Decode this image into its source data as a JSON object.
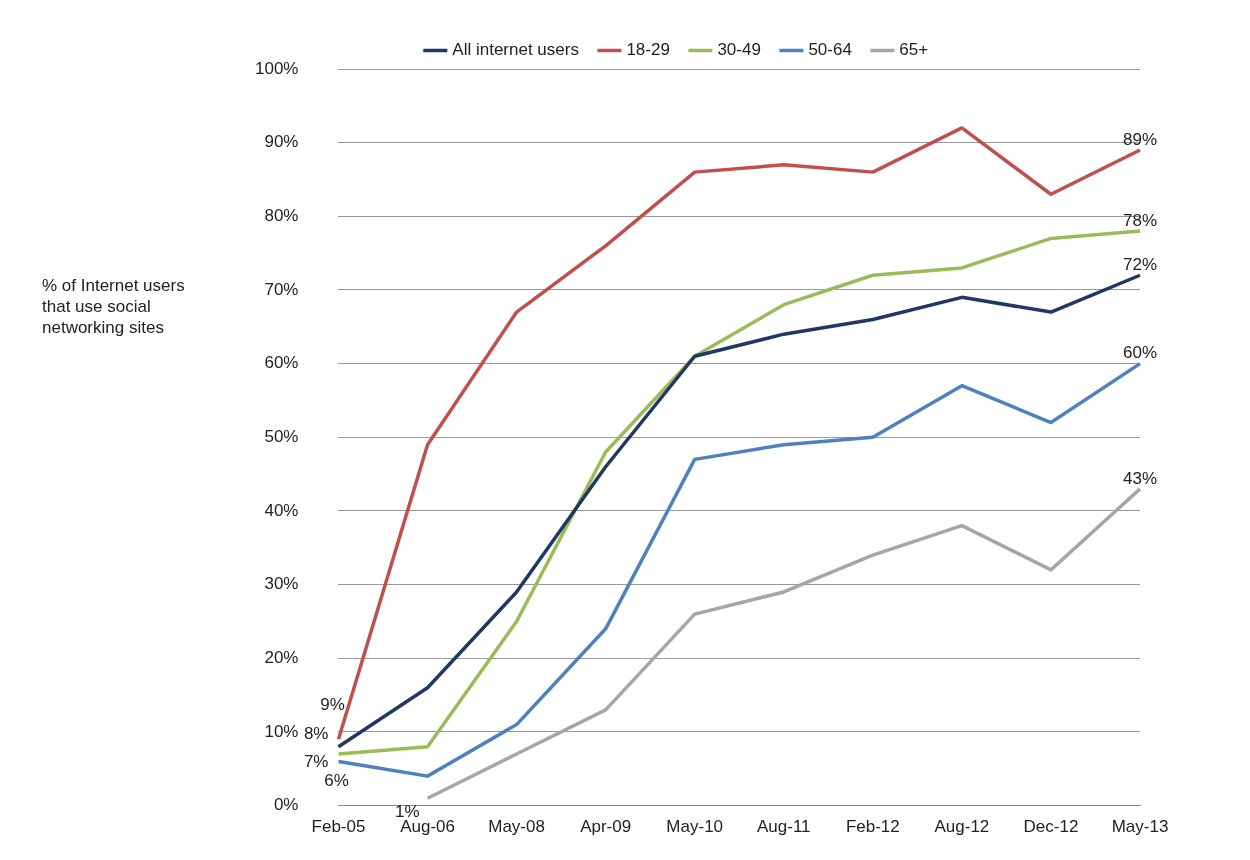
{
  "chart_data": {
    "type": "line",
    "ylabel": "% of Internet users that use social networking sites",
    "categories": [
      "Feb-05",
      "Aug-06",
      "May-08",
      "Apr-09",
      "May-10",
      "Aug-11",
      "Feb-12",
      "Aug-12",
      "Dec-12",
      "May-13"
    ],
    "series": [
      {
        "name": "All internet users",
        "color": "#1f3864",
        "values": [
          8,
          16,
          29,
          46,
          61,
          64,
          66,
          69,
          67,
          72
        ],
        "value_labels": [
          "8%",
          null,
          null,
          null,
          null,
          null,
          null,
          null,
          null,
          "72%"
        ]
      },
      {
        "name": "18-29",
        "color": "#c0504d",
        "values": [
          9,
          49,
          67,
          76,
          86,
          87,
          86,
          92,
          83,
          89
        ],
        "value_labels": [
          "9%",
          null,
          null,
          null,
          null,
          null,
          null,
          null,
          null,
          "89%"
        ]
      },
      {
        "name": "30-49",
        "color": "#9bbb59",
        "values": [
          7,
          8,
          25,
          48,
          61,
          68,
          72,
          73,
          77,
          78
        ],
        "value_labels": [
          "7%",
          null,
          null,
          null,
          null,
          null,
          null,
          null,
          null,
          "78%"
        ]
      },
      {
        "name": "50-64",
        "color": "#4f81bd",
        "values": [
          6,
          4,
          11,
          24,
          47,
          49,
          50,
          57,
          52,
          60
        ],
        "value_labels": [
          "6%",
          null,
          null,
          null,
          null,
          null,
          null,
          null,
          null,
          "60%"
        ]
      },
      {
        "name": "65+",
        "color": "#a6a6a6",
        "values": [
          null,
          1,
          7,
          13,
          26,
          29,
          34,
          38,
          32,
          43
        ],
        "value_labels": [
          null,
          "1%",
          null,
          null,
          null,
          null,
          null,
          null,
          null,
          "43%"
        ]
      }
    ],
    "ylim": [
      0,
      100
    ],
    "yticks": [
      {
        "value": 0,
        "label": "0%"
      },
      {
        "value": 10,
        "label": "10%"
      },
      {
        "value": 20,
        "label": "20%"
      },
      {
        "value": 30,
        "label": "30%"
      },
      {
        "value": 40,
        "label": "40%"
      },
      {
        "value": 50,
        "label": "50%"
      },
      {
        "value": 60,
        "label": "60%"
      },
      {
        "value": 70,
        "label": "70%"
      },
      {
        "value": 80,
        "label": "80%"
      },
      {
        "value": 90,
        "label": "90%"
      },
      {
        "value": 100,
        "label": "100%"
      }
    ],
    "grid": "y",
    "legend": "top",
    "marker": "none",
    "line_style": "solid"
  }
}
